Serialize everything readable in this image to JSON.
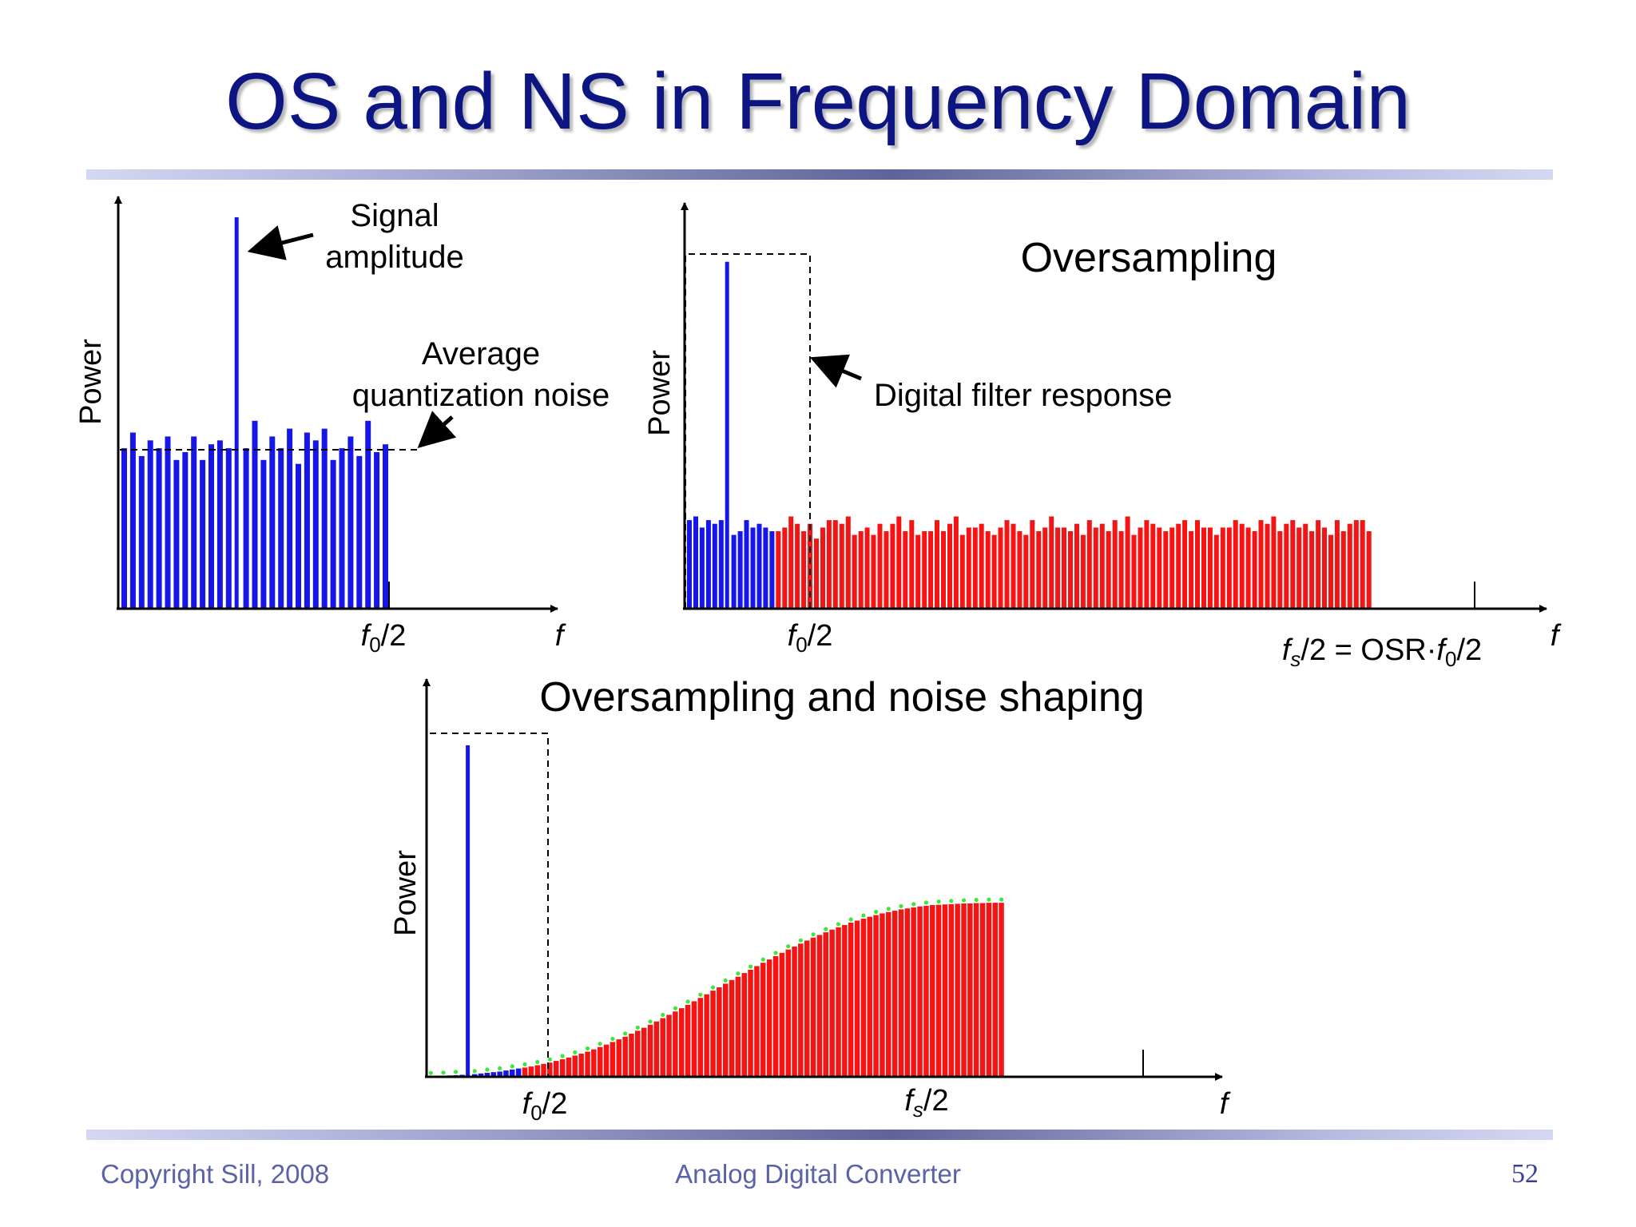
{
  "slide": {
    "title": "OS and NS in Frequency Domain",
    "footer": {
      "copyright": "Copyright Sill, 2008",
      "center": "Analog Digital Converter",
      "page_number": "52"
    }
  },
  "panels": {
    "nyquist": {
      "y_axis_label": "Power",
      "x_axis_label": "f",
      "x_tick_label": "f0/2",
      "annotation_signal_line1": "Signal",
      "annotation_signal_line2": "amplitude",
      "annotation_noise_line1": "Average",
      "annotation_noise_line2": "quantization noise"
    },
    "oversampling": {
      "title": "Oversampling",
      "y_axis_label": "Power",
      "x_axis_label": "f",
      "x_tick_label_f0": "f0/2",
      "x_tick_label_fs": "fs/2 = OSR·f0/2",
      "annotation_filter": "Digital filter response"
    },
    "noise_shaping": {
      "title": "Oversampling and noise shaping",
      "y_axis_label": "Power",
      "x_axis_label": "f",
      "x_tick_label_f0": "f0/2",
      "x_tick_label_fs": "fs/2"
    }
  },
  "chart_data": [
    {
      "type": "bar",
      "panel": "nyquist",
      "series": [
        {
          "role": "in-band quantization noise",
          "color": "#1616e8",
          "values": [
            0.41,
            0.45,
            0.39,
            0.43,
            0.41,
            0.44,
            0.38,
            0.4,
            0.44,
            0.38,
            0.42,
            0.43,
            0.41,
            1.0,
            0.41,
            0.48,
            0.38,
            0.44,
            0.41,
            0.46,
            0.37,
            0.45,
            0.43,
            0.46,
            0.38,
            0.41,
            0.44,
            0.39,
            0.48,
            0.4,
            0.42
          ]
        }
      ],
      "signal_bar_index": 13,
      "average_noise_level": 0.41
    },
    {
      "type": "bar",
      "panel": "oversampling",
      "series": [
        {
          "role": "in-band noise + signal",
          "color": "#1616e8",
          "values": [
            0.24,
            0.25,
            0.22,
            0.24,
            0.23,
            0.24,
            0.94,
            0.2,
            0.21,
            0.24,
            0.22,
            0.23,
            0.22,
            0.21
          ]
        },
        {
          "role": "out-of-band noise",
          "color": "#f51414",
          "values": [
            0.21,
            0.22,
            0.25,
            0.23,
            0.21,
            0.23,
            0.19,
            0.22,
            0.24,
            0.24,
            0.23,
            0.25,
            0.2,
            0.21,
            0.22,
            0.2,
            0.23,
            0.21,
            0.23,
            0.25,
            0.21,
            0.24,
            0.2,
            0.21,
            0.21,
            0.24,
            0.21,
            0.23,
            0.25,
            0.2,
            0.22,
            0.22,
            0.23,
            0.21,
            0.2,
            0.22,
            0.24,
            0.23,
            0.21,
            0.2,
            0.24,
            0.21,
            0.22,
            0.25,
            0.22,
            0.22,
            0.21,
            0.23,
            0.2,
            0.24,
            0.22,
            0.23,
            0.21,
            0.24,
            0.21,
            0.25,
            0.2,
            0.22,
            0.24,
            0.23,
            0.22,
            0.21,
            0.22,
            0.23,
            0.24,
            0.21,
            0.24,
            0.22,
            0.22,
            0.2,
            0.22,
            0.22,
            0.24,
            0.23,
            0.22,
            0.21,
            0.24,
            0.23,
            0.25,
            0.21,
            0.23,
            0.24,
            0.22,
            0.23,
            0.21,
            0.24,
            0.22,
            0.2,
            0.24,
            0.21,
            0.23,
            0.24,
            0.24,
            0.21
          ]
        }
      ],
      "signal_bar_index": 6,
      "filter_level": 0.96
    },
    {
      "type": "bar",
      "panel": "noise_shaping",
      "series": [
        {
          "role": "in-band shaped noise + signal",
          "color": "#1616e8",
          "values": [
            0.002,
            0.003,
            0.003,
            0.004,
            0.005,
            0.006,
            1.0,
            0.008,
            0.01,
            0.012,
            0.014,
            0.016,
            0.019,
            0.022,
            0.025
          ]
        },
        {
          "role": "out-of-band shaped noise",
          "color": "#f51414",
          "values": [
            0.028,
            0.031,
            0.035,
            0.039,
            0.043,
            0.048,
            0.053,
            0.058,
            0.064,
            0.07,
            0.076,
            0.083,
            0.09,
            0.097,
            0.105,
            0.113,
            0.121,
            0.13,
            0.139,
            0.148,
            0.157,
            0.167,
            0.177,
            0.187,
            0.197,
            0.207,
            0.217,
            0.228,
            0.238,
            0.249,
            0.26,
            0.27,
            0.281,
            0.292,
            0.302,
            0.313,
            0.323,
            0.334,
            0.344,
            0.354,
            0.364,
            0.374,
            0.384,
            0.393,
            0.402,
            0.411,
            0.42,
            0.428,
            0.436,
            0.444,
            0.451,
            0.458,
            0.465,
            0.471,
            0.477,
            0.483,
            0.488,
            0.493,
            0.497,
            0.501,
            0.505,
            0.508,
            0.511,
            0.514,
            0.516,
            0.518,
            0.519,
            0.52,
            0.521,
            0.522,
            0.523,
            0.523,
            0.524,
            0.524,
            0.525,
            0.525,
            0.525
          ]
        }
      ],
      "signal_bar_index": 6,
      "filter_level": 1.03,
      "envelope": "green dotted curve following the bar tops"
    }
  ]
}
